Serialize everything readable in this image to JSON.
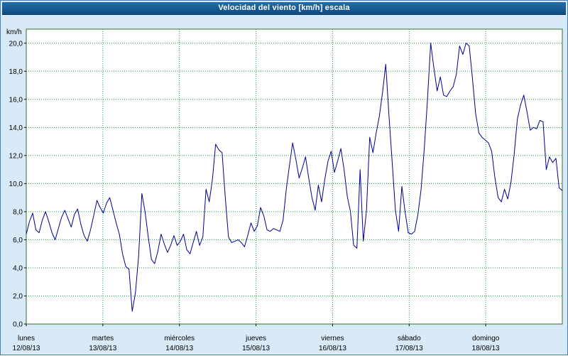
{
  "title_bar": {
    "text": "Velocidad del viento [km/h] escala"
  },
  "colors": {
    "title_bg_top": "#226da8",
    "title_bg_bottom": "#0f4c80",
    "title_text": "#ffffff",
    "page_bg": "#d8eaf8",
    "outer_border": "#4a7ebb",
    "plot_bg": "#ffffff",
    "plot_border": "#2f6f2f",
    "grid": "#169a42",
    "line": "#00008f",
    "axis_text": "#000000"
  },
  "chart_data": {
    "type": "line",
    "title": "Velocidad del viento [km/h] escala",
    "grid": true,
    "legend": "none",
    "y_axis": {
      "unit_label": "km/h",
      "min": 0,
      "max_value": 20,
      "axis_max": 21,
      "tick_step": 2,
      "tick_values": [
        0,
        2,
        4,
        6,
        8,
        10,
        12,
        14,
        16,
        18,
        20
      ],
      "tick_labels": [
        "0,0",
        "2,0",
        "4,0",
        "6,0",
        "8,0",
        "10,0",
        "12,0",
        "14,0",
        "16,0",
        "18,0",
        "20,0"
      ]
    },
    "x_axis": {
      "days": [
        {
          "name": "lunes",
          "date": "12/08/13"
        },
        {
          "name": "martes",
          "date": "13/08/13"
        },
        {
          "name": "miércoles",
          "date": "14/08/13"
        },
        {
          "name": "jueves",
          "date": "15/08/13"
        },
        {
          "name": "viernes",
          "date": "16/08/13"
        },
        {
          "name": "sábado",
          "date": "17/08/13"
        },
        {
          "name": "domingo",
          "date": "18/08/13"
        }
      ]
    },
    "series": [
      {
        "name": "Velocidad del viento (km/h)",
        "sampling": "hourly",
        "values": [
          6.4,
          7.3,
          7.9,
          6.7,
          6.5,
          7.4,
          8.0,
          7.3,
          6.5,
          6.0,
          6.8,
          7.6,
          8.1,
          7.5,
          6.9,
          7.8,
          8.2,
          7.1,
          6.3,
          5.9,
          6.7,
          7.7,
          8.8,
          8.3,
          7.9,
          8.6,
          9.0,
          8.1,
          7.2,
          6.4,
          5.0,
          4.1,
          3.9,
          0.9,
          2.2,
          4.8,
          9.3,
          8.0,
          6.2,
          4.6,
          4.3,
          5.2,
          6.4,
          5.7,
          5.1,
          5.6,
          6.3,
          5.6,
          5.9,
          6.4,
          5.3,
          5.0,
          5.8,
          6.6,
          5.6,
          6.2,
          9.6,
          8.7,
          10.3,
          12.8,
          12.4,
          12.2,
          9.0,
          6.2,
          5.8,
          5.9,
          6.0,
          5.8,
          5.5,
          6.3,
          7.2,
          6.6,
          7.0,
          8.3,
          7.7,
          6.7,
          6.6,
          6.8,
          6.7,
          6.6,
          7.4,
          9.6,
          11.3,
          12.9,
          11.7,
          10.4,
          11.1,
          11.9,
          10.4,
          9.0,
          8.1,
          9.9,
          8.7,
          10.3,
          11.6,
          12.3,
          10.8,
          11.6,
          12.5,
          11.0,
          9.1,
          8.0,
          5.6,
          5.4,
          11.0,
          5.9,
          8.1,
          13.3,
          12.2,
          13.6,
          14.8,
          16.5,
          18.5,
          14.8,
          11.5,
          8.1,
          6.6,
          9.8,
          8.0,
          6.5,
          6.4,
          6.6,
          7.8,
          9.6,
          12.5,
          16.0,
          20.0,
          18.2,
          16.6,
          17.6,
          16.3,
          16.2,
          16.6,
          16.9,
          17.8,
          19.8,
          19.2,
          20.0,
          19.8,
          17.5,
          15.0,
          13.6,
          13.3,
          13.1,
          12.9,
          12.3,
          10.4,
          9.0,
          8.7,
          9.6,
          8.9,
          10.1,
          12.1,
          14.6,
          15.6,
          16.3,
          15.1,
          13.8,
          14.0,
          13.9,
          14.5,
          14.4,
          11.0,
          11.9,
          11.5,
          11.8,
          9.7,
          9.5
        ]
      }
    ]
  }
}
